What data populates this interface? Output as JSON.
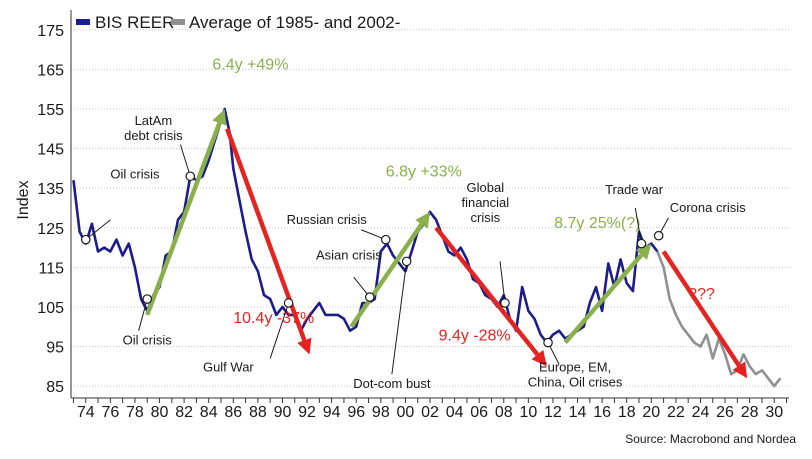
{
  "chart_data": {
    "type": "line",
    "ylabel": "Index",
    "ylim": [
      82,
      180
    ],
    "xlim": [
      1972.8,
      2031.2
    ],
    "yticks": [
      85,
      95,
      105,
      115,
      125,
      135,
      145,
      155,
      165,
      175
    ],
    "xticks": [
      {
        "year": 1974,
        "label": "74"
      },
      {
        "year": 1976,
        "label": "76"
      },
      {
        "year": 1978,
        "label": "78"
      },
      {
        "year": 1980,
        "label": "80"
      },
      {
        "year": 1982,
        "label": "82"
      },
      {
        "year": 1984,
        "label": "84"
      },
      {
        "year": 1986,
        "label": "86"
      },
      {
        "year": 1988,
        "label": "88"
      },
      {
        "year": 1990,
        "label": "90"
      },
      {
        "year": 1992,
        "label": "92"
      },
      {
        "year": 1994,
        "label": "94"
      },
      {
        "year": 1996,
        "label": "96"
      },
      {
        "year": 1998,
        "label": "98"
      },
      {
        "year": 2000,
        "label": "00"
      },
      {
        "year": 2002,
        "label": "02"
      },
      {
        "year": 2004,
        "label": "04"
      },
      {
        "year": 2006,
        "label": "06"
      },
      {
        "year": 2008,
        "label": "08"
      },
      {
        "year": 2010,
        "label": "10"
      },
      {
        "year": 2012,
        "label": "12"
      },
      {
        "year": 2014,
        "label": "14"
      },
      {
        "year": 2016,
        "label": "16"
      },
      {
        "year": 2018,
        "label": "18"
      },
      {
        "year": 2020,
        "label": "20"
      },
      {
        "year": 2022,
        "label": "22"
      },
      {
        "year": 2024,
        "label": "24"
      },
      {
        "year": 2026,
        "label": "26"
      },
      {
        "year": 2028,
        "label": "28"
      },
      {
        "year": 2030,
        "label": "30"
      }
    ],
    "series": [
      {
        "name": "BIS REER",
        "color": "#1c1c8c",
        "points": [
          [
            1973.0,
            137
          ],
          [
            1973.5,
            124
          ],
          [
            1974.0,
            121
          ],
          [
            1974.5,
            126
          ],
          [
            1975.0,
            119
          ],
          [
            1975.5,
            120
          ],
          [
            1976.0,
            119
          ],
          [
            1976.5,
            122
          ],
          [
            1977.0,
            118
          ],
          [
            1977.5,
            121
          ],
          [
            1978.0,
            115
          ],
          [
            1978.5,
            107
          ],
          [
            1979.0,
            104
          ],
          [
            1979.5,
            108
          ],
          [
            1980.0,
            110
          ],
          [
            1980.5,
            118
          ],
          [
            1981.0,
            119
          ],
          [
            1981.5,
            127
          ],
          [
            1982.0,
            129
          ],
          [
            1982.5,
            138
          ],
          [
            1983.0,
            137
          ],
          [
            1983.5,
            138
          ],
          [
            1984.0,
            142
          ],
          [
            1984.5,
            147
          ],
          [
            1985.0,
            152
          ],
          [
            1985.3,
            155
          ],
          [
            1985.7,
            149
          ],
          [
            1986.0,
            140
          ],
          [
            1986.5,
            132
          ],
          [
            1987.0,
            124
          ],
          [
            1987.5,
            117
          ],
          [
            1988.0,
            114
          ],
          [
            1988.5,
            108
          ],
          [
            1989.0,
            107
          ],
          [
            1989.5,
            103
          ],
          [
            1990.0,
            105
          ],
          [
            1990.5,
            103
          ],
          [
            1991.0,
            103
          ],
          [
            1991.5,
            99
          ],
          [
            1992.0,
            102
          ],
          [
            1992.5,
            104
          ],
          [
            1993.0,
            106
          ],
          [
            1993.5,
            103
          ],
          [
            1994.0,
            103
          ],
          [
            1994.5,
            103
          ],
          [
            1995.0,
            102
          ],
          [
            1995.5,
            99
          ],
          [
            1996.0,
            100
          ],
          [
            1996.5,
            106
          ],
          [
            1997.0,
            106
          ],
          [
            1997.5,
            107
          ],
          [
            1998.0,
            119
          ],
          [
            1998.5,
            121
          ],
          [
            1999.0,
            118
          ],
          [
            1999.5,
            116
          ],
          [
            2000.0,
            114
          ],
          [
            2000.5,
            119
          ],
          [
            2001.0,
            124
          ],
          [
            2001.5,
            126
          ],
          [
            2002.0,
            129
          ],
          [
            2002.5,
            127
          ],
          [
            2003.0,
            123
          ],
          [
            2003.5,
            119
          ],
          [
            2004.0,
            118
          ],
          [
            2004.5,
            120
          ],
          [
            2005.0,
            117
          ],
          [
            2005.5,
            112
          ],
          [
            2006.0,
            111
          ],
          [
            2006.5,
            108
          ],
          [
            2007.0,
            107
          ],
          [
            2007.5,
            105
          ],
          [
            2008.0,
            108
          ],
          [
            2008.5,
            102
          ],
          [
            2009.0,
            99
          ],
          [
            2009.5,
            110
          ],
          [
            2010.0,
            104
          ],
          [
            2010.5,
            102
          ],
          [
            2011.0,
            98
          ],
          [
            2011.5,
            96
          ],
          [
            2012.0,
            98
          ],
          [
            2012.5,
            99
          ],
          [
            2013.0,
            97
          ],
          [
            2013.5,
            98
          ],
          [
            2014.0,
            99
          ],
          [
            2014.5,
            100
          ],
          [
            2015.0,
            106
          ],
          [
            2015.5,
            110
          ],
          [
            2016.0,
            104
          ],
          [
            2016.5,
            116
          ],
          [
            2017.0,
            110
          ],
          [
            2017.5,
            117
          ],
          [
            2018.0,
            111
          ],
          [
            2018.5,
            109
          ],
          [
            2019.0,
            124
          ],
          [
            2019.5,
            120
          ],
          [
            2020.0,
            121
          ],
          [
            2020.5,
            119
          ]
        ]
      },
      {
        "name": "Average of 1985- and 2002-",
        "color": "#909090",
        "points": [
          [
            2020.5,
            119
          ],
          [
            2021.0,
            115
          ],
          [
            2021.5,
            107
          ],
          [
            2022.0,
            103
          ],
          [
            2022.5,
            100
          ],
          [
            2023.0,
            98
          ],
          [
            2023.5,
            96
          ],
          [
            2024.0,
            95
          ],
          [
            2024.5,
            98
          ],
          [
            2025.0,
            92
          ],
          [
            2025.5,
            97
          ],
          [
            2026.0,
            93
          ],
          [
            2026.5,
            88
          ],
          [
            2027.0,
            89
          ],
          [
            2027.5,
            93
          ],
          [
            2028.0,
            90
          ],
          [
            2028.5,
            88
          ],
          [
            2029.0,
            89
          ],
          [
            2029.5,
            87
          ],
          [
            2030.0,
            85
          ],
          [
            2030.5,
            87
          ]
        ]
      }
    ],
    "trend_arrows": [
      {
        "from": [
          1979.0,
          103
        ],
        "to": [
          1985.3,
          155
        ],
        "color": "#8ab04c",
        "label": "6.4y +49%",
        "label_at": [
          1984.3,
          165
        ]
      },
      {
        "from": [
          1985.5,
          150
        ],
        "to": [
          1992.2,
          93
        ],
        "color": "#e52321",
        "label": "10.4y -37%",
        "label_at": [
          1986.0,
          101
        ]
      },
      {
        "from": [
          1995.6,
          100
        ],
        "to": [
          2002.0,
          129
        ],
        "color": "#8ab04c",
        "label": "6.8y +33%",
        "label_at": [
          1998.4,
          138
        ]
      },
      {
        "from": [
          2002.5,
          125
        ],
        "to": [
          2011.5,
          90
        ],
        "color": "#e52321",
        "label": "9.4y -28%",
        "label_at": [
          2002.7,
          96.5
        ]
      },
      {
        "from": [
          2013.0,
          96
        ],
        "to": [
          2020.0,
          121
        ],
        "color": "#8ab04c",
        "label": "8.7y 25%(?)",
        "label_at": [
          2012.1,
          125
        ]
      },
      {
        "from": [
          2021.0,
          119
        ],
        "to": [
          2027.8,
          87
        ],
        "color": "#e52321",
        "label": "???",
        "label_at": [
          2023.0,
          107
        ]
      }
    ],
    "event_markers": [
      {
        "label": "Oil crisis",
        "point": [
          1974.0,
          122
        ],
        "lines": [
          "Oil crisis"
        ],
        "leader_to": [
          1976.0,
          127
        ],
        "text_at": [
          1978.0,
          137.5
        ],
        "anchor": "middle"
      },
      {
        "label": "LatAm debt crisis",
        "point": [
          1982.5,
          138
        ],
        "lines": [
          "LatAm",
          "debt crisis"
        ],
        "leader_to": [
          1981.7,
          146
        ],
        "text_at": [
          1979.5,
          151
        ],
        "anchor": "middle"
      },
      {
        "label": "Oil crisis",
        "point": [
          1979.0,
          107
        ],
        "lines": [
          "Oil crisis"
        ],
        "leader_to": [
          1978.3,
          99
        ],
        "text_at": [
          1979.0,
          95.5
        ],
        "anchor": "middle"
      },
      {
        "label": "Gulf War",
        "point": [
          1990.5,
          106
        ],
        "lines": [
          "Gulf War"
        ],
        "leader_to": [
          1989.0,
          92
        ],
        "text_at": [
          1985.6,
          88.7
        ],
        "anchor": "middle"
      },
      {
        "label": "Russian crisis",
        "point": [
          1998.4,
          122
        ],
        "lines": [
          "Russian crisis"
        ],
        "leader_to": [
          1996.4,
          124.5
        ],
        "text_at": [
          1993.6,
          126
        ],
        "anchor": "middle"
      },
      {
        "label": "Asian crisis",
        "point": [
          1997.1,
          107.5
        ],
        "lines": [
          "Asian crisis"
        ],
        "leader_to": [
          1995.8,
          112.5
        ],
        "text_at": [
          1995.4,
          117
        ],
        "anchor": "middle"
      },
      {
        "label": "Dot-com bust",
        "point": [
          2000.1,
          116.5
        ],
        "lines": [
          "Dot-com bust"
        ],
        "leader_to": [
          1998.9,
          88
        ],
        "text_at": [
          1998.9,
          84.5
        ],
        "anchor": "middle"
      },
      {
        "label": "Global financial crisis",
        "point": [
          2008.1,
          106
        ],
        "lines": [
          "Global",
          "financial",
          "crisis"
        ],
        "leader_to": [
          2007.7,
          116.5
        ],
        "text_at": [
          2006.5,
          134
        ],
        "anchor": "middle"
      },
      {
        "label": "Europe, EM, China, Oil crises",
        "point": [
          2011.6,
          96
        ],
        "lines": [
          "Europe, EM,",
          "China, Oil crises"
        ],
        "leader_to": [
          2012.5,
          90.5
        ],
        "text_at": [
          2013.8,
          88.7
        ],
        "anchor": "middle"
      },
      {
        "label": "Trade war",
        "point": [
          2019.2,
          121
        ],
        "lines": [
          "Trade war"
        ],
        "leader_to": [
          2018.7,
          130
        ],
        "text_at": [
          2018.6,
          133.5
        ],
        "anchor": "middle"
      },
      {
        "label": "Corona crisis",
        "point": [
          2020.6,
          123
        ],
        "lines": [
          "Corona crisis"
        ],
        "leader_to": [
          2021.4,
          127.5
        ],
        "text_at": [
          2021.5,
          129
        ],
        "anchor": "start"
      }
    ]
  },
  "legend": {
    "items": [
      {
        "label": "BIS REER",
        "color": "#1c1c8c"
      },
      {
        "label": "Average of 1985- and 2002-",
        "color": "#909090"
      }
    ]
  },
  "source": "Source: Macrobond and Nordea"
}
